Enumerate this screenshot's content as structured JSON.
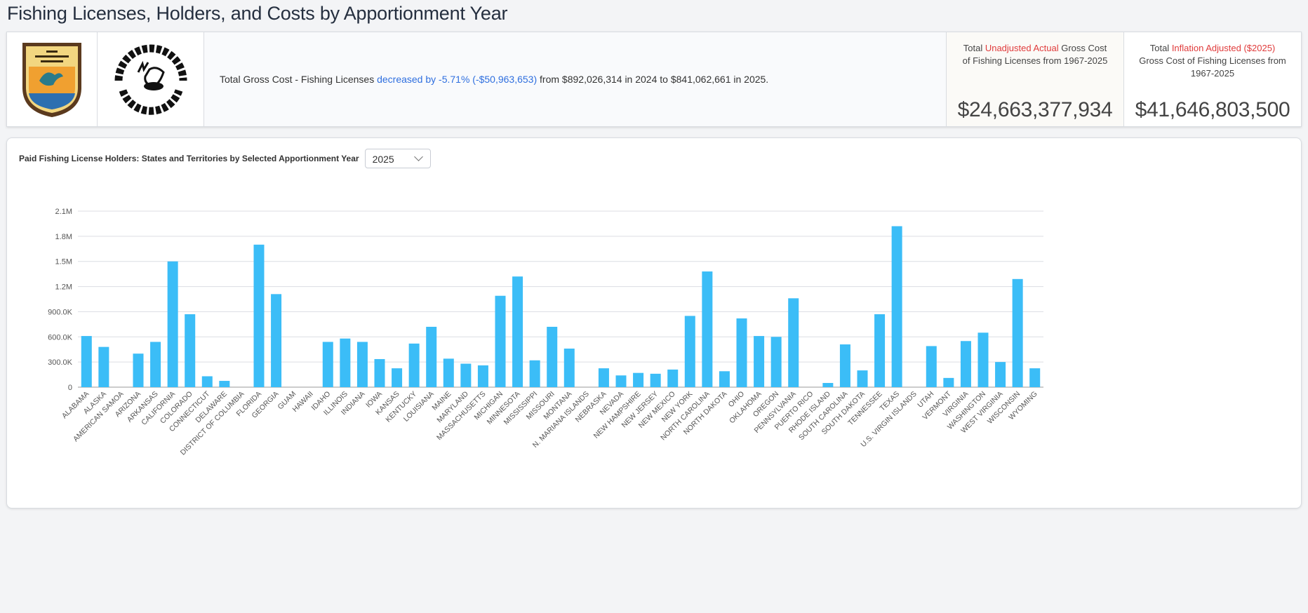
{
  "page_title": "Fishing Licenses, Holders, and Costs by Apportionment Year",
  "logos": {
    "fws": "U.S. FISH & WILDLIFE SERVICE",
    "wsfr": "WILDLIFE & SPORT FISH RESTORATION"
  },
  "summary": {
    "prefix": "Total Gross Cost - Fishing Licenses ",
    "highlight": "decreased by -5.71% (-$50,963,653)",
    "suffix": " from $892,026,314 in 2024 to $841,062,661 in 2025."
  },
  "stats": [
    {
      "pre": "Total ",
      "red": "Unadjusted Actual",
      "post": " Gross Cost of Fishing Licenses from 1967-2025",
      "value": "$24,663,377,934"
    },
    {
      "pre": "Total ",
      "red": "Inflation Adjusted ($2025)",
      "post": " Gross Cost of Fishing Licenses from 1967-2025",
      "value": "$41,646,803,500"
    }
  ],
  "colors": {
    "accent_red": "#e03b3b",
    "highlight_blue": "#2f6fdf",
    "bar": "#3bbdf7"
  },
  "chart_card": {
    "title": "Paid Fishing License Holders: States and Territories by Selected Apportionment Year",
    "year_selected": "2025"
  },
  "chart_data": {
    "type": "bar",
    "ylim": [
      0,
      2100000
    ],
    "grid": true,
    "yticks": [
      0,
      300000,
      600000,
      900000,
      1200000,
      1500000,
      1800000,
      2100000
    ],
    "ytick_labels": [
      "0",
      "300.0K",
      "600.0K",
      "900.0K",
      "1.2M",
      "1.5M",
      "1.8M",
      "2.1M"
    ],
    "categories": [
      "ALABAMA",
      "ALASKA",
      "AMERICAN SAMOA",
      "ARIZONA",
      "ARKANSAS",
      "CALIFORNIA",
      "COLORADO",
      "CONNECTICUT",
      "DELAWARE",
      "DISTRICT OF COLUMBIA",
      "FLORIDA",
      "GEORGIA",
      "GUAM",
      "HAWAII",
      "IDAHO",
      "ILLINOIS",
      "INDIANA",
      "IOWA",
      "KANSAS",
      "KENTUCKY",
      "LOUISIANA",
      "MAINE",
      "MARYLAND",
      "MASSACHUSETTS",
      "MICHIGAN",
      "MINNESOTA",
      "MISSISSIPPI",
      "MISSOURI",
      "MONTANA",
      "N. MARIANA ISLANDS",
      "NEBRASKA",
      "NEVADA",
      "NEW HAMPSHIRE",
      "NEW JERSEY",
      "NEW MEXICO",
      "NEW YORK",
      "NORTH CAROLINA",
      "NORTH DAKOTA",
      "OHIO",
      "OKLAHOMA",
      "OREGON",
      "PENNSYLVANIA",
      "PUERTO RICO",
      "RHODE ISLAND",
      "SOUTH CAROLINA",
      "SOUTH DAKOTA",
      "TENNESSEE",
      "TEXAS",
      "U.S. VIRGIN ISLANDS",
      "UTAH",
      "VERMONT",
      "VIRGINIA",
      "WASHINGTON",
      "WEST VIRGINIA",
      "WISCONSIN",
      "WYOMING"
    ],
    "values": [
      610000,
      480000,
      0,
      400000,
      540000,
      1500000,
      870000,
      130000,
      75000,
      0,
      1700000,
      1110000,
      0,
      0,
      540000,
      580000,
      540000,
      335000,
      225000,
      520000,
      720000,
      340000,
      280000,
      260000,
      1090000,
      1320000,
      320000,
      720000,
      460000,
      0,
      225000,
      140000,
      170000,
      160000,
      210000,
      850000,
      1380000,
      190000,
      820000,
      610000,
      600000,
      1060000,
      0,
      50000,
      510000,
      200000,
      870000,
      1920000,
      0,
      490000,
      110000,
      550000,
      650000,
      300000,
      1290000,
      225000
    ]
  }
}
